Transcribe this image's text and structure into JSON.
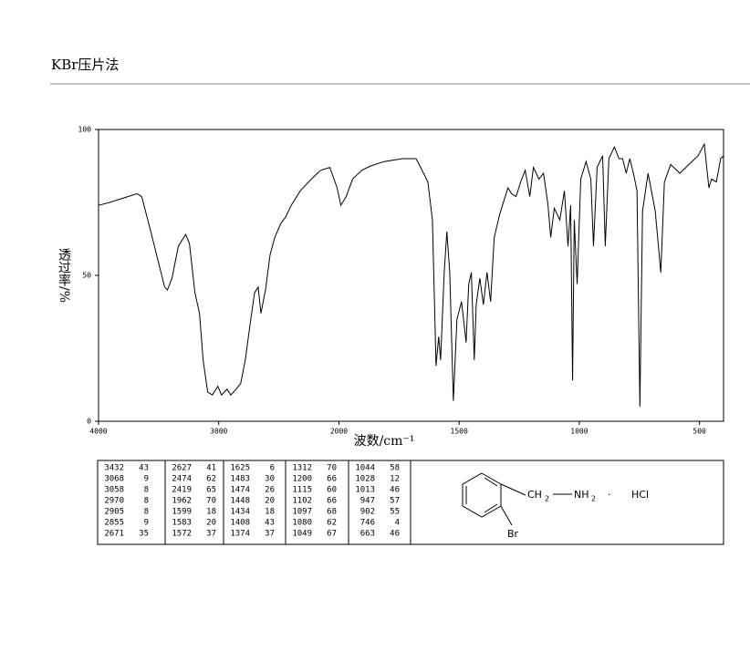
{
  "header": {
    "title": "KBr压片法"
  },
  "chart_data": {
    "type": "line",
    "color": "#000000",
    "xlabel": "波数/cm⁻¹",
    "ylabel": "透过率/%",
    "xlim": [
      4000,
      400
    ],
    "x_scale_break": 2000,
    "xticks": [
      4000,
      3000,
      2000,
      1500,
      1000,
      500
    ],
    "ylim": [
      0,
      100
    ],
    "yticks": [
      0,
      50,
      100
    ],
    "x": [
      4000,
      3908,
      3756,
      3679,
      3641,
      3603,
      3565,
      3511,
      3450,
      3427,
      3389,
      3336,
      3275,
      3244,
      3198,
      3160,
      3130,
      3092,
      3053,
      3008,
      2977,
      2931,
      2900,
      2855,
      2817,
      2779,
      2740,
      2702,
      2672,
      2649,
      2611,
      2573,
      2534,
      2481,
      2443,
      2397,
      2321,
      2229,
      2153,
      2076,
      2015,
      1992,
      1970,
      1943,
      1905,
      1868,
      1812,
      1736,
      1679,
      1660,
      1630,
      1611,
      1596,
      1585,
      1577,
      1562,
      1551,
      1539,
      1524,
      1509,
      1490,
      1479,
      1471,
      1460,
      1449,
      1437,
      1429,
      1414,
      1399,
      1384,
      1369,
      1354,
      1331,
      1312,
      1297,
      1282,
      1263,
      1244,
      1225,
      1206,
      1191,
      1168,
      1149,
      1130,
      1119,
      1104,
      1081,
      1062,
      1047,
      1036,
      1028,
      1021,
      1009,
      994,
      972,
      952,
      941,
      926,
      903,
      892,
      877,
      854,
      835,
      820,
      805,
      790,
      775,
      760,
      748,
      737,
      714,
      684,
      661,
      646,
      620,
      582,
      544,
      506,
      480,
      461,
      450,
      430,
      412,
      400
    ],
    "values": [
      74,
      75,
      77,
      78,
      77,
      71,
      65,
      56,
      46,
      45,
      49,
      60,
      64,
      61,
      44,
      37,
      21,
      10,
      9,
      12,
      9,
      11,
      9,
      11,
      13,
      21,
      33,
      44,
      46,
      37,
      45,
      57,
      63,
      68,
      70,
      74,
      79,
      83,
      86,
      87,
      80,
      74,
      77,
      83,
      86,
      87.5,
      89,
      90,
      90,
      87,
      82,
      69,
      19,
      29,
      21,
      51,
      65,
      51,
      7,
      35,
      41,
      33,
      27,
      47,
      51,
      21,
      40,
      49,
      40,
      51,
      41,
      63,
      71,
      76,
      80,
      78,
      77,
      82,
      86,
      77,
      87,
      83,
      85,
      74,
      63,
      73,
      69,
      79,
      60,
      74,
      14,
      69,
      47,
      83,
      89,
      83,
      60,
      87,
      91,
      60,
      90,
      94,
      90,
      90,
      85,
      90,
      85,
      79,
      5,
      72,
      85,
      72,
      51,
      82,
      88,
      85,
      88,
      91,
      95,
      80,
      83,
      82,
      90,
      91
    ]
  },
  "peak_table": {
    "rows": [
      [
        "3432",
        "43",
        "2627",
        "41",
        "1625",
        "6",
        "1312",
        "70",
        "1044",
        "58"
      ],
      [
        "3068",
        "9",
        "2474",
        "62",
        "1483",
        "30",
        "1200",
        "66",
        "1028",
        "12"
      ],
      [
        "3058",
        "8",
        "2419",
        "65",
        "1474",
        "26",
        "1115",
        "60",
        "1013",
        "46"
      ],
      [
        "2970",
        "8",
        "1962",
        "70",
        "1448",
        "20",
        "1102",
        "66",
        "947",
        "57"
      ],
      [
        "2905",
        "8",
        "1599",
        "18",
        "1434",
        "18",
        "1097",
        "68",
        "902",
        "55"
      ],
      [
        "2855",
        "9",
        "1583",
        "20",
        "1408",
        "43",
        "1080",
        "62",
        "746",
        "4"
      ],
      [
        "2671",
        "35",
        "1572",
        "37",
        "1374",
        "37",
        "1049",
        "67",
        "663",
        "46"
      ]
    ]
  },
  "structure": {
    "ch": "CH",
    "sub1": "2",
    "nh": "NH",
    "sub2": "2",
    "dot": "·",
    "hcl": "HCl",
    "br": "Br"
  }
}
